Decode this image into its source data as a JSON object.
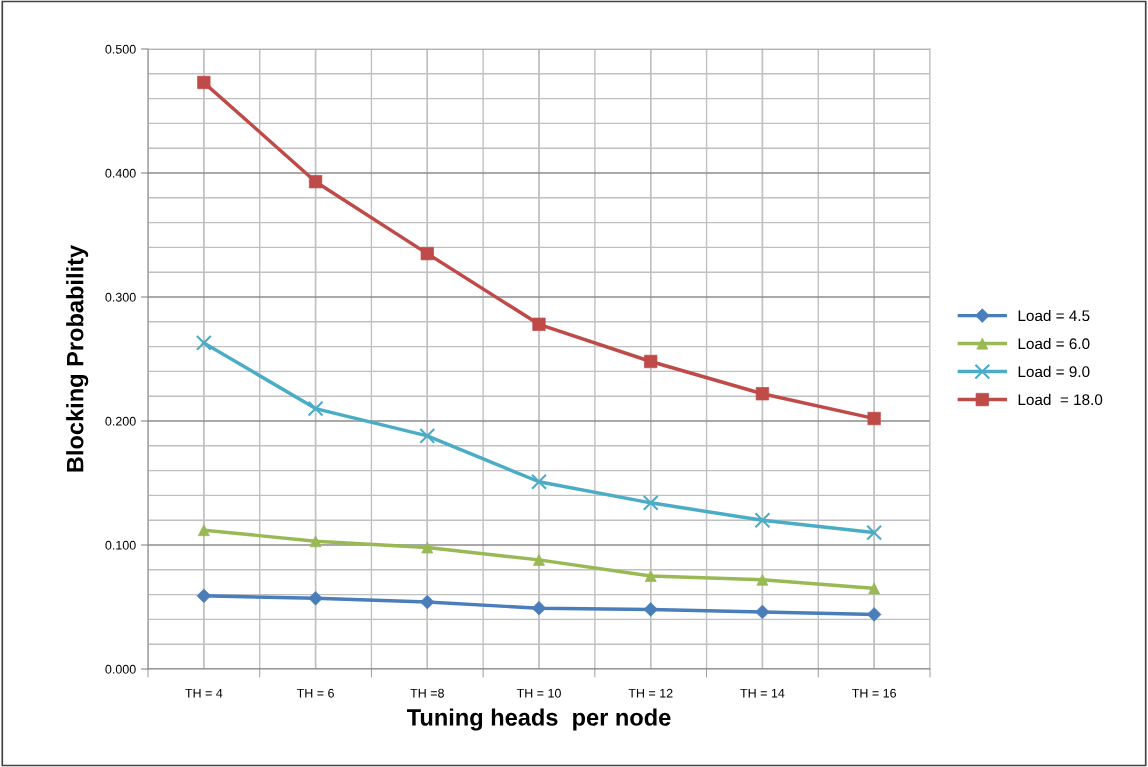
{
  "chart_data": {
    "type": "line",
    "xlabel": "Tuning heads  per node",
    "ylabel": "Blocking Probability",
    "categories": [
      "TH = 4",
      "TH = 6",
      "TH =8",
      "TH = 10",
      "TH = 12",
      "TH = 14",
      "TH = 16"
    ],
    "series": [
      {
        "name": "Load = 4.5",
        "color": "#4a7ebb",
        "marker": "diamond",
        "values": [
          0.059,
          0.057,
          0.054,
          0.049,
          0.048,
          0.046,
          0.044
        ]
      },
      {
        "name": "Load = 6.0",
        "color": "#98b954",
        "marker": "triangle",
        "values": [
          0.112,
          0.103,
          0.098,
          0.088,
          0.075,
          0.072,
          0.065
        ]
      },
      {
        "name": "Load = 9.0",
        "color": "#4bacc6",
        "marker": "cross",
        "values": [
          0.263,
          0.21,
          0.188,
          0.151,
          0.134,
          0.12,
          0.11
        ]
      },
      {
        "name": "Load  = 18.0",
        "color": "#be4b48",
        "marker": "square",
        "values": [
          0.473,
          0.393,
          0.335,
          0.278,
          0.248,
          0.222,
          0.202
        ]
      }
    ],
    "ylim": [
      0,
      0.5
    ],
    "yticks": [
      {
        "value": 0,
        "label": "0.000"
      },
      {
        "value": 0.1,
        "label": "0.100"
      },
      {
        "value": 0.2,
        "label": "0.200"
      },
      {
        "value": 0.3,
        "label": "0.300"
      },
      {
        "value": 0.4,
        "label": "0.400"
      },
      {
        "value": 0.5,
        "label": "0.500"
      }
    ],
    "grid": true,
    "legend": "right",
    "line_style": "solid"
  }
}
